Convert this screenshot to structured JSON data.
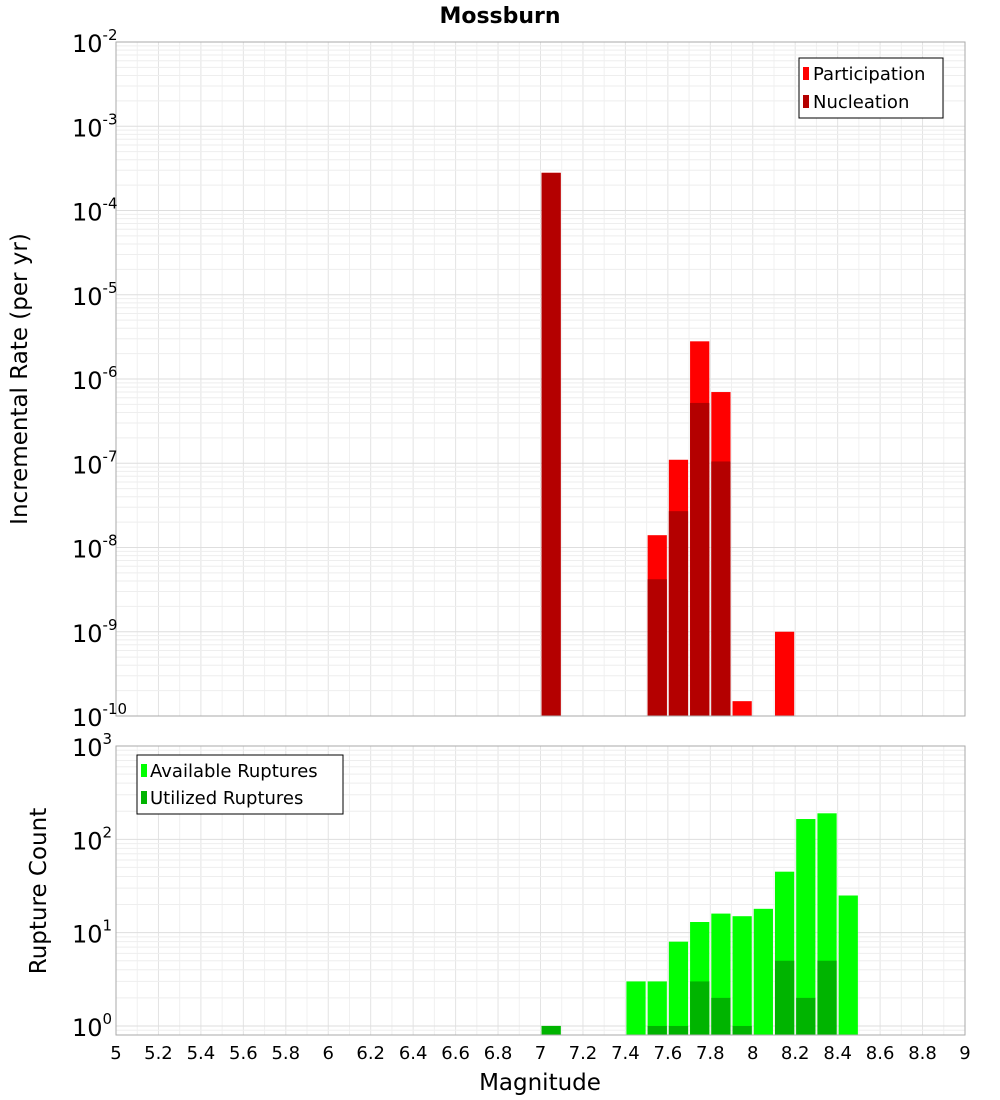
{
  "chart_data": [
    {
      "type": "bar",
      "title": "Mossburn",
      "xlabel": "Magnitude",
      "ylabel": "Incremental Rate (per yr)",
      "yscale": "log",
      "xlim": [
        5,
        9
      ],
      "ylim": [
        1e-10,
        0.01
      ],
      "bin_width": 0.1,
      "grid": true,
      "legend_position": "top-right",
      "series": [
        {
          "name": "Participation",
          "color": "#ff0000",
          "x": [
            7.05,
            7.55,
            7.65,
            7.75,
            7.85,
            7.95,
            8.15
          ],
          "values": [
            0.00028,
            1.4e-08,
            1.1e-07,
            2.8e-06,
            7e-07,
            1.5e-10,
            1e-09
          ]
        },
        {
          "name": "Nucleation",
          "color": "#b40000",
          "x": [
            7.05,
            7.55,
            7.65,
            7.75,
            7.85
          ],
          "values": [
            0.00028,
            4.2e-09,
            2.7e-08,
            5.2e-07,
            1.05e-07
          ]
        }
      ]
    },
    {
      "type": "bar",
      "xlabel": "Magnitude",
      "ylabel": "Rupture Count",
      "yscale": "log",
      "xlim": [
        5,
        9
      ],
      "ylim": [
        0.8,
        1000
      ],
      "bin_width": 0.1,
      "grid": true,
      "legend_position": "top-left",
      "series": [
        {
          "name": "Available Ruptures",
          "color": "#00ff00",
          "x": [
            7.05,
            7.45,
            7.55,
            7.65,
            7.75,
            7.85,
            7.95,
            8.05,
            8.15,
            8.25,
            8.35,
            8.45
          ],
          "values": [
            1,
            3,
            3,
            8,
            13,
            16,
            15,
            18,
            45,
            165,
            190,
            25
          ]
        },
        {
          "name": "Utilized Ruptures",
          "color": "#00b400",
          "x": [
            7.05,
            7.55,
            7.65,
            7.75,
            7.85,
            7.95,
            8.15,
            8.25,
            8.35
          ],
          "values": [
            1,
            1,
            1,
            3,
            2,
            1,
            5,
            2,
            5
          ]
        }
      ]
    }
  ],
  "x_ticks": [
    "5",
    "5.2",
    "5.4",
    "5.6",
    "5.8",
    "6",
    "6.2",
    "6.4",
    "6.6",
    "6.8",
    "7",
    "7.2",
    "7.4",
    "7.6",
    "7.8",
    "8",
    "8.2",
    "8.4",
    "8.6",
    "8.8",
    "9"
  ],
  "top_y_ticks": [
    {
      "base": "10",
      "exp": "-10"
    },
    {
      "base": "10",
      "exp": "-9"
    },
    {
      "base": "10",
      "exp": "-8"
    },
    {
      "base": "10",
      "exp": "-7"
    },
    {
      "base": "10",
      "exp": "-6"
    },
    {
      "base": "10",
      "exp": "-5"
    },
    {
      "base": "10",
      "exp": "-4"
    },
    {
      "base": "10",
      "exp": "-3"
    },
    {
      "base": "10",
      "exp": "-2"
    }
  ],
  "bottom_y_ticks": [
    {
      "base": "10",
      "exp": "0"
    },
    {
      "base": "10",
      "exp": "1"
    },
    {
      "base": "10",
      "exp": "2"
    },
    {
      "base": "10",
      "exp": "3"
    }
  ]
}
